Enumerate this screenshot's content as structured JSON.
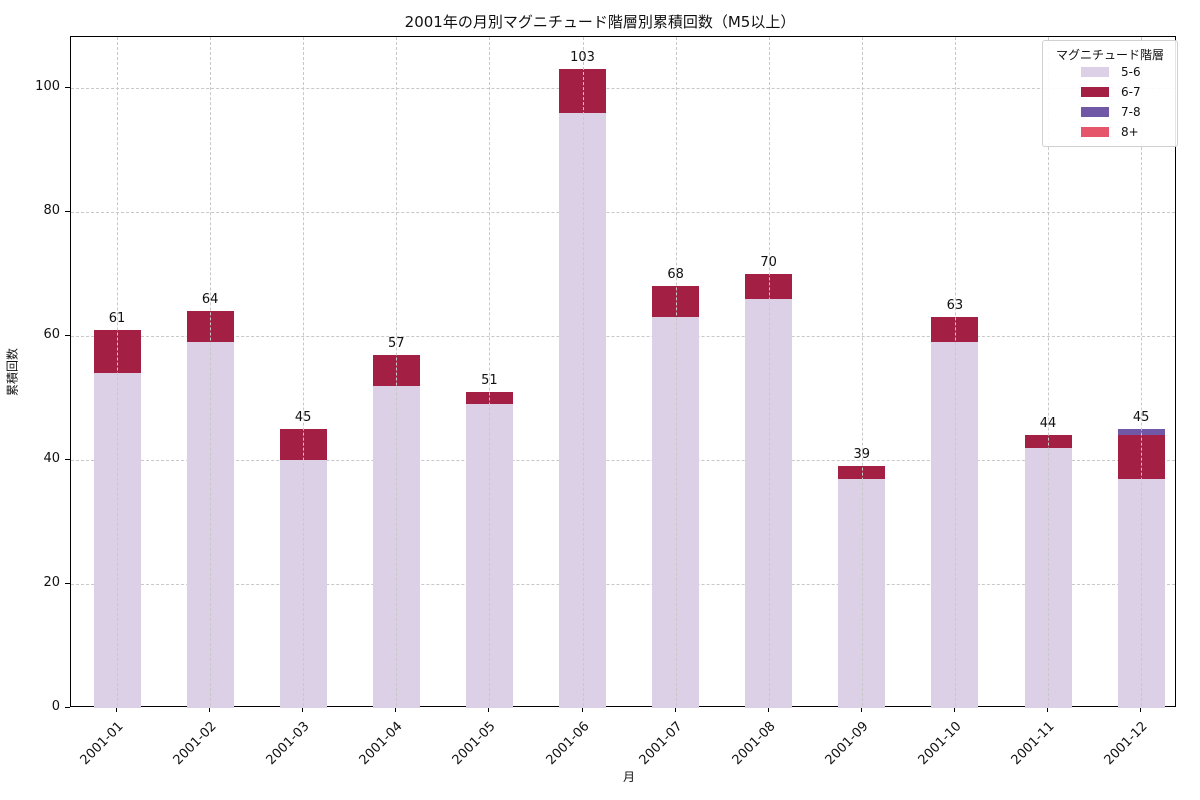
{
  "chart_data": {
    "type": "bar",
    "stacked": true,
    "title": "2001年の月別マグニチュード階層別累積回数（M5以上）",
    "xlabel": "月",
    "ylabel": "累積回数",
    "ylim": [
      0,
      108
    ],
    "yticks": [
      0,
      20,
      40,
      60,
      80,
      100
    ],
    "grid": true,
    "legend_position": "upper right",
    "legend_title": "マグニチュード階層",
    "categories": [
      "2001-01",
      "2001-02",
      "2001-03",
      "2001-04",
      "2001-05",
      "2001-06",
      "2001-07",
      "2001-08",
      "2001-09",
      "2001-10",
      "2001-11",
      "2001-12"
    ],
    "series": [
      {
        "name": "5-6",
        "color": "#dcd0e6",
        "values": [
          54,
          59,
          40,
          52,
          49,
          96,
          63,
          66,
          37,
          59,
          42,
          37
        ]
      },
      {
        "name": "6-7",
        "color": "#a31f43",
        "values": [
          7,
          5,
          5,
          5,
          2,
          7,
          5,
          4,
          2,
          4,
          2,
          7
        ]
      },
      {
        "name": "7-8",
        "color": "#7058a6",
        "values": [
          0,
          0,
          0,
          0,
          0,
          0,
          0,
          0,
          0,
          0,
          0,
          1
        ]
      },
      {
        "name": "8+",
        "color": "#e5566a",
        "values": [
          0,
          0,
          0,
          0,
          0,
          0,
          0,
          0,
          0,
          0,
          0,
          0
        ]
      }
    ],
    "totals": [
      61,
      64,
      45,
      57,
      51,
      103,
      68,
      70,
      39,
      63,
      44,
      45
    ]
  }
}
